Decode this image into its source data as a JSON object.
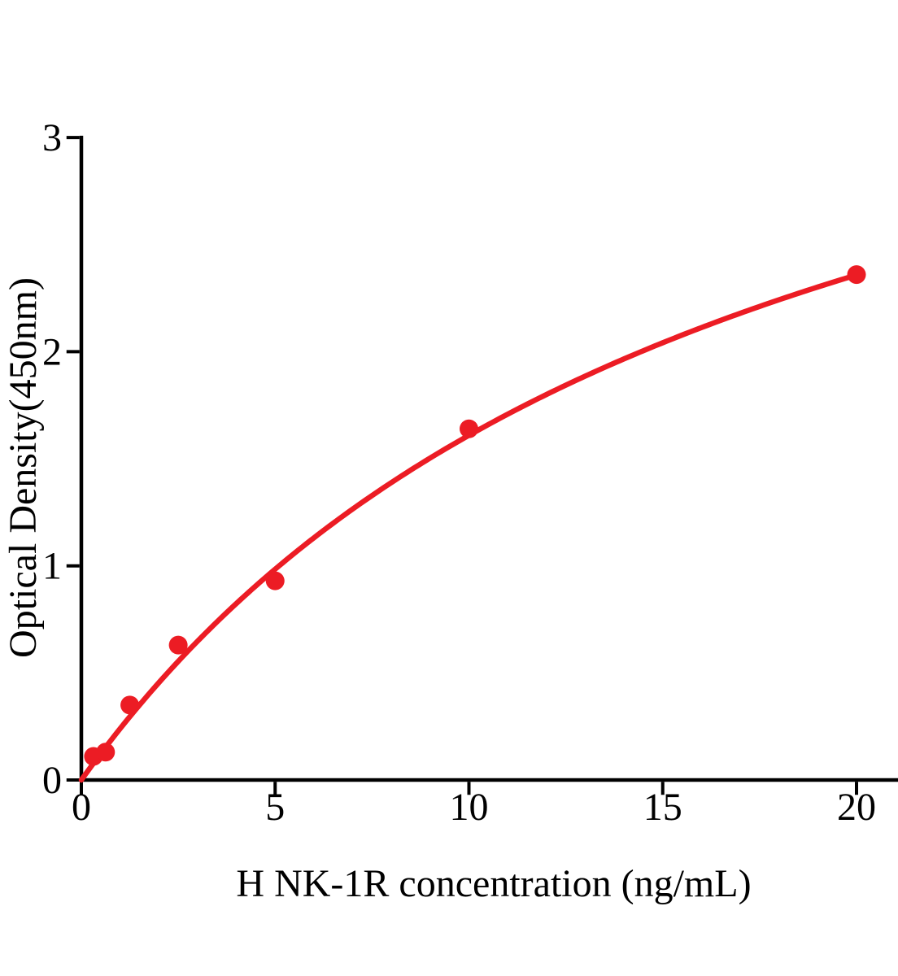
{
  "figure": {
    "background_color": "#ffffff",
    "axis_color": "#000000"
  },
  "chart_data": {
    "type": "scatter",
    "title": "",
    "xlabel": "H NK-1R concentration (ng/mL)",
    "ylabel": "Optical Density(450nm)",
    "x": [
      0.3125,
      0.625,
      1.25,
      2.5,
      5,
      10,
      20
    ],
    "y": [
      0.11,
      0.13,
      0.35,
      0.63,
      0.93,
      1.64,
      2.36
    ],
    "x_ticks": [
      0,
      5,
      10,
      15,
      20
    ],
    "y_ticks": [
      0,
      1,
      2,
      3
    ],
    "xlim": [
      0,
      21
    ],
    "ylim": [
      0,
      3
    ],
    "grid": false,
    "legend": "none",
    "marker_color": "#EC1C24",
    "line_color": "#EC1C24",
    "fit_curve": {
      "type": "saturation_binding",
      "vmax": 4.41,
      "kd": 17.4,
      "x_range": [
        0,
        20
      ]
    }
  }
}
